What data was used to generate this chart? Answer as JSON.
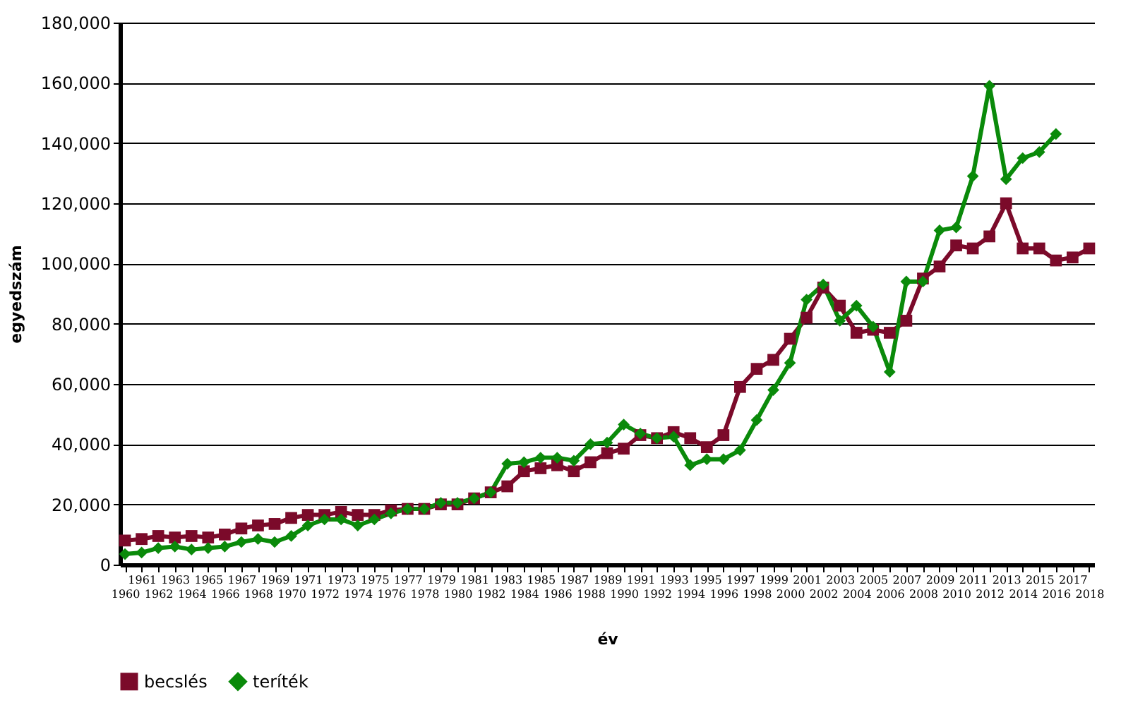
{
  "chart_data": {
    "type": "line",
    "xlabel": "év",
    "ylabel": "egyedszám",
    "categories": [
      "1960",
      "1961",
      "1962",
      "1963",
      "1964",
      "1965",
      "1966",
      "1967",
      "1968",
      "1969",
      "1970",
      "1971",
      "1972",
      "1973",
      "1974",
      "1975",
      "1976",
      "1977",
      "1978",
      "1979",
      "1980",
      "1981",
      "1982",
      "1983",
      "1984",
      "1985",
      "1986",
      "1987",
      "1988",
      "1989",
      "1990",
      "1991",
      "1992",
      "1993",
      "1994",
      "1995",
      "1996",
      "1997",
      "1998",
      "1999",
      "2000",
      "2001",
      "2002",
      "2003",
      "2004",
      "2005",
      "2006",
      "2007",
      "2008",
      "2009",
      "2010",
      "2011",
      "2012",
      "2013",
      "2014",
      "2015",
      "2016",
      "2017",
      "2018"
    ],
    "series": [
      {
        "name": "becslés",
        "color": "#7b0a2a",
        "marker": "square",
        "values": [
          8000,
          8500,
          9500,
          9000,
          9500,
          9000,
          10000,
          12000,
          13000,
          13500,
          15500,
          16500,
          16500,
          17500,
          16500,
          16500,
          18000,
          18500,
          18500,
          20000,
          20000,
          22000,
          24000,
          26000,
          31000,
          32000,
          33000,
          31000,
          34000,
          37000,
          38500,
          43000,
          42000,
          44000,
          42000,
          39000,
          43000,
          59000,
          65000,
          68000,
          75000,
          82000,
          92000,
          86000,
          77000,
          78000,
          77000,
          81000,
          95000,
          99000,
          106000,
          105000,
          109000,
          120000,
          105000,
          105000,
          101000,
          102000,
          105000
        ]
      },
      {
        "name": "teríték",
        "color": "#0a8a0a",
        "marker": "diamond",
        "values": [
          3500,
          4000,
          5500,
          6000,
          5000,
          5500,
          6000,
          7500,
          8500,
          7500,
          9500,
          13000,
          15000,
          15000,
          13000,
          15000,
          17000,
          18500,
          18500,
          20500,
          20500,
          22000,
          24000,
          33500,
          34000,
          35500,
          35500,
          34500,
          40000,
          40500,
          46500,
          43500,
          42000,
          42500,
          33000,
          35000,
          35000,
          38000,
          48000,
          58000,
          67000,
          88000,
          93000,
          81000,
          86000,
          79000,
          64000,
          94000,
          94000,
          111000,
          112000,
          129000,
          159000,
          128000,
          135000,
          137000,
          143000,
          null,
          null
        ]
      }
    ],
    "ylim": [
      0,
      180000
    ],
    "yticks": [
      0,
      {
        "value": 20000,
        "label": "20,000"
      },
      {
        "value": 40000,
        "label": "40,000"
      },
      {
        "value": 60000,
        "label": "60,000"
      },
      {
        "value": 80000,
        "label": "80,000"
      },
      {
        "value": 100000,
        "label": "100,000"
      },
      {
        "value": 120000,
        "label": "120,000"
      },
      {
        "value": 140000,
        "label": "140,000"
      },
      {
        "value": 160000,
        "label": "160,000"
      },
      {
        "value": 180000,
        "label": "180,000"
      }
    ],
    "grid": "y",
    "legend": "bottom",
    "line_style": "solid"
  }
}
